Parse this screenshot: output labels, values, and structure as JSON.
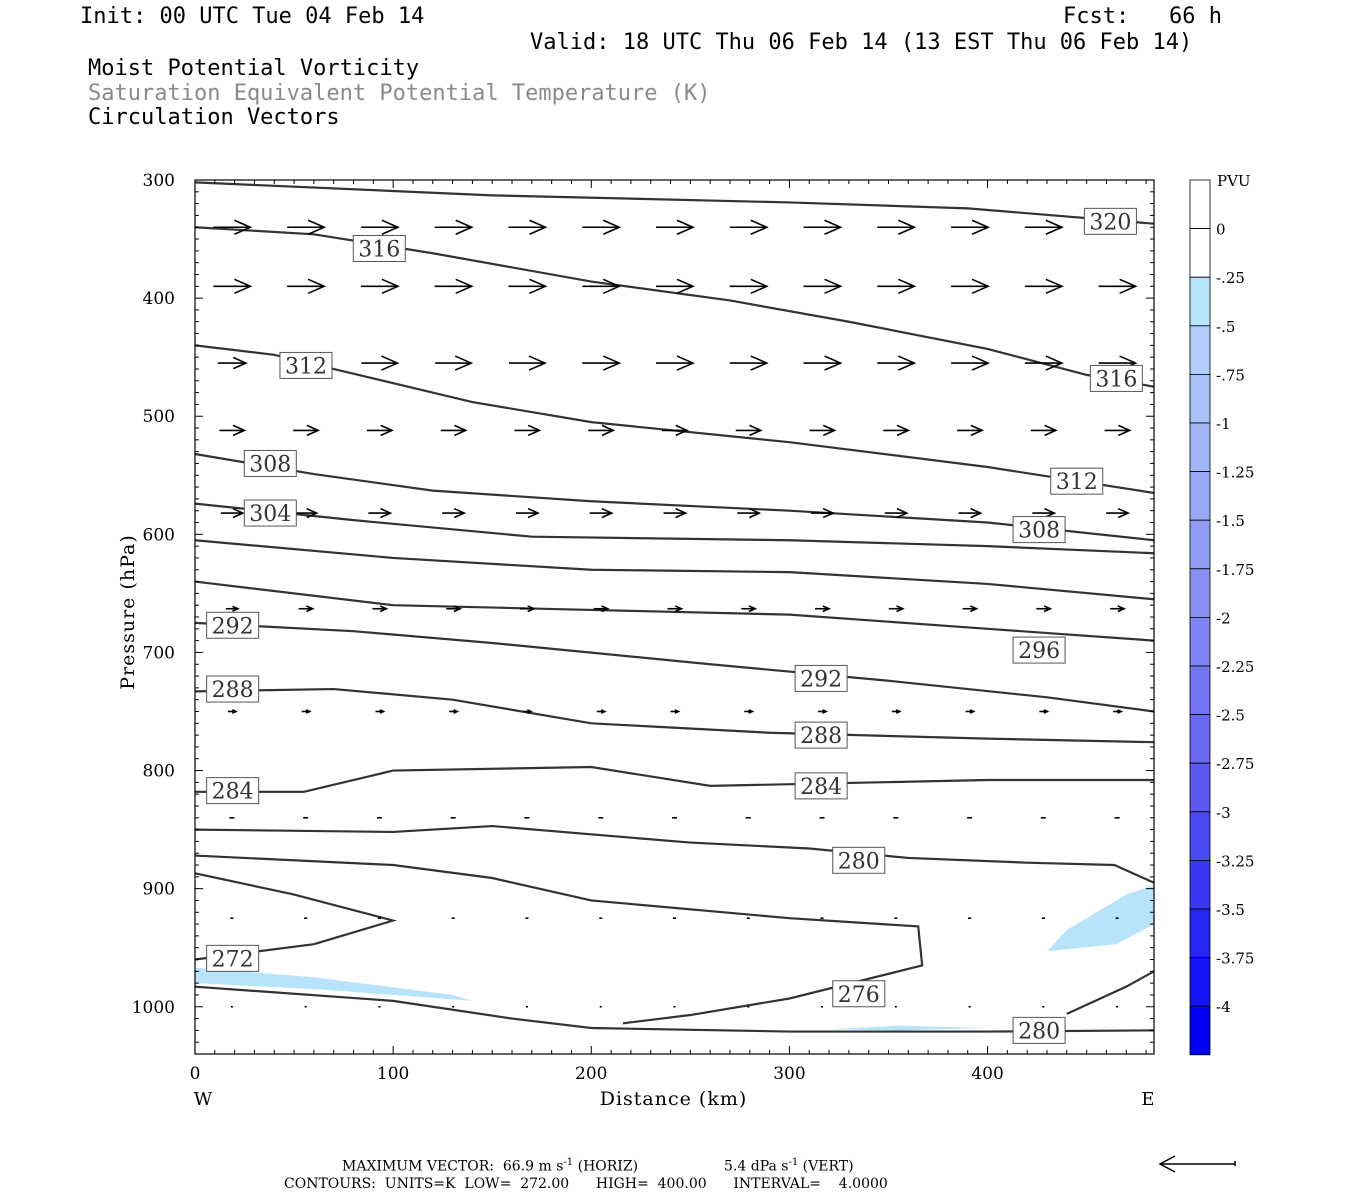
{
  "header": {
    "init": "Init: 00 UTC Tue 04 Feb 14",
    "fcst": "Fcst:   66 h",
    "valid": "Valid: 18 UTC Thu 06 Feb 14 (13 EST Thu 06 Feb 14)",
    "title1": "Moist Potential Vorticity",
    "title2": "Saturation Equivalent Potential Temperature (K)",
    "title3": "Circulation Vectors"
  },
  "colors": {
    "contour": "#333333",
    "vector": "#000000",
    "neg_shading": "#b8e4fb"
  },
  "chart_data": {
    "type": "cross-section",
    "xlabel": "Distance (km)",
    "ylabel": "Pressure (hPa)",
    "xlim": [
      0,
      484
    ],
    "ylim": [
      300,
      1040
    ],
    "x_ticks": [
      0,
      100,
      200,
      300,
      400
    ],
    "y_ticks": [
      300,
      400,
      500,
      600,
      700,
      800,
      900,
      1000
    ],
    "x_end_labels": {
      "left": "W",
      "right": "E"
    },
    "colorbar": {
      "title": "PVU",
      "labels": [
        "0",
        "-.25",
        "-.5",
        "-.75",
        "-1",
        "-1.25",
        "-1.5",
        "-1.75",
        "-2",
        "-2.25",
        "-2.5",
        "-2.75",
        "-3",
        "-3.25",
        "-3.5",
        "-3.75",
        "-4"
      ],
      "colors": [
        "#ffffff",
        "#ffffff",
        "#b8e4fb",
        "#b0cdfa",
        "#a8c1f9",
        "#a0b4f7",
        "#98a8f6",
        "#909cf5",
        "#8890f4",
        "#7f82f3",
        "#7474f2",
        "#6868f2",
        "#5a5af2",
        "#4a4af3",
        "#3838f4",
        "#2626f6",
        "#1414f8",
        "#0000fb"
      ]
    },
    "contour_labels": [
      {
        "text": "320",
        "x": 462,
        "p": 335
      },
      {
        "text": "316",
        "x": 93,
        "p": 358
      },
      {
        "text": "316",
        "x": 465,
        "p": 468
      },
      {
        "text": "312",
        "x": 56,
        "p": 457
      },
      {
        "text": "312",
        "x": 445,
        "p": 555
      },
      {
        "text": "308",
        "x": 38,
        "p": 540
      },
      {
        "text": "308",
        "x": 426,
        "p": 596
      },
      {
        "text": "304",
        "x": 38,
        "p": 582
      },
      {
        "text": "296",
        "x": 426,
        "p": 698
      },
      {
        "text": "292",
        "x": 19,
        "p": 677
      },
      {
        "text": "292",
        "x": 316,
        "p": 722
      },
      {
        "text": "288",
        "x": 19,
        "p": 731
      },
      {
        "text": "288",
        "x": 316,
        "p": 770
      },
      {
        "text": "284",
        "x": 19,
        "p": 817
      },
      {
        "text": "284",
        "x": 316,
        "p": 813
      },
      {
        "text": "280",
        "x": 335,
        "p": 876
      },
      {
        "text": "276",
        "x": 335,
        "p": 989
      },
      {
        "text": "272",
        "x": 19,
        "p": 959
      },
      {
        "text": "280",
        "x": 426,
        "p": 1020
      }
    ],
    "contours": [
      {
        "level": 320,
        "points": [
          [
            0,
            302
          ],
          [
            150,
            313
          ],
          [
            300,
            319
          ],
          [
            390,
            324
          ],
          [
            484,
            337
          ]
        ]
      },
      {
        "level": 316,
        "points": [
          [
            0,
            340
          ],
          [
            60,
            346
          ],
          [
            120,
            362
          ],
          [
            200,
            386
          ],
          [
            270,
            402
          ],
          [
            330,
            420
          ],
          [
            400,
            443
          ],
          [
            450,
            465
          ],
          [
            484,
            475
          ]
        ]
      },
      {
        "level": 312,
        "points": [
          [
            0,
            440
          ],
          [
            40,
            448
          ],
          [
            90,
            468
          ],
          [
            140,
            488
          ],
          [
            200,
            505
          ],
          [
            300,
            522
          ],
          [
            400,
            543
          ],
          [
            484,
            565
          ]
        ]
      },
      {
        "level": 308,
        "points": [
          [
            0,
            532
          ],
          [
            60,
            549
          ],
          [
            120,
            563
          ],
          [
            200,
            572
          ],
          [
            300,
            580
          ],
          [
            400,
            590
          ],
          [
            484,
            605
          ]
        ]
      },
      {
        "level": 304,
        "points": [
          [
            0,
            574
          ],
          [
            80,
            588
          ],
          [
            170,
            602
          ],
          [
            300,
            605
          ],
          [
            400,
            610
          ],
          [
            484,
            616
          ]
        ]
      },
      {
        "level": 300,
        "points": [
          [
            0,
            605
          ],
          [
            100,
            620
          ],
          [
            200,
            630
          ],
          [
            300,
            632
          ],
          [
            400,
            642
          ],
          [
            484,
            655
          ]
        ]
      },
      {
        "level": 296,
        "points": [
          [
            0,
            640
          ],
          [
            100,
            660
          ],
          [
            200,
            664
          ],
          [
            300,
            668
          ],
          [
            400,
            680
          ],
          [
            484,
            690
          ]
        ]
      },
      {
        "level": 292,
        "points": [
          [
            0,
            675
          ],
          [
            80,
            682
          ],
          [
            150,
            692
          ],
          [
            260,
            710
          ],
          [
            350,
            724
          ],
          [
            430,
            738
          ],
          [
            484,
            750
          ]
        ]
      },
      {
        "level": 288,
        "points": [
          [
            0,
            733
          ],
          [
            70,
            731
          ],
          [
            130,
            740
          ],
          [
            200,
            760
          ],
          [
            290,
            768
          ],
          [
            400,
            773
          ],
          [
            484,
            776
          ]
        ]
      },
      {
        "level": 284,
        "points": [
          [
            0,
            818
          ],
          [
            55,
            818
          ],
          [
            100,
            800
          ],
          [
            200,
            797
          ],
          [
            260,
            813
          ],
          [
            400,
            808
          ],
          [
            484,
            808
          ]
        ]
      },
      {
        "level": 280,
        "points": [
          [
            0,
            850
          ],
          [
            100,
            852
          ],
          [
            150,
            847
          ],
          [
            250,
            861
          ],
          [
            310,
            866
          ],
          [
            360,
            874
          ],
          [
            420,
            878
          ],
          [
            464,
            880
          ],
          [
            484,
            895
          ]
        ]
      },
      {
        "level": 276,
        "points": [
          [
            0,
            872
          ],
          [
            100,
            880
          ],
          [
            150,
            891
          ],
          [
            200,
            910
          ],
          [
            300,
            925
          ],
          [
            365,
            932
          ],
          [
            367,
            965
          ],
          [
            300,
            993
          ],
          [
            250,
            1007
          ],
          [
            216,
            1014
          ]
        ]
      },
      {
        "level": 272,
        "points": [
          [
            0,
            887
          ],
          [
            50,
            905
          ],
          [
            100,
            927
          ],
          [
            60,
            947
          ],
          [
            0,
            960
          ]
        ]
      },
      {
        "level": 280,
        "points": [
          [
            0,
            983
          ],
          [
            100,
            995
          ],
          [
            160,
            1010
          ],
          [
            200,
            1018
          ],
          [
            300,
            1021
          ],
          [
            400,
            1021
          ],
          [
            484,
            1020
          ]
        ]
      },
      {
        "level": 284,
        "points": [
          [
            440,
            1006
          ],
          [
            470,
            983
          ],
          [
            484,
            970
          ]
        ]
      }
    ],
    "shading": [
      {
        "value": -0.5,
        "points": [
          [
            0,
            967
          ],
          [
            60,
            975
          ],
          [
            130,
            990
          ],
          [
            140,
            995
          ],
          [
            60,
            985
          ],
          [
            0,
            980
          ]
        ]
      },
      {
        "value": -0.5,
        "points": [
          [
            430,
            953
          ],
          [
            440,
            935
          ],
          [
            470,
            905
          ],
          [
            484,
            897
          ],
          [
            484,
            930
          ],
          [
            465,
            947
          ]
        ]
      },
      {
        "value": -0.5,
        "points": [
          [
            320,
            1019
          ],
          [
            355,
            1016
          ],
          [
            400,
            1018
          ],
          [
            355,
            1020
          ]
        ]
      }
    ],
    "vector_rows": [
      {
        "p": 340,
        "lengths": [
          37,
          37,
          37,
          37,
          37,
          37,
          37,
          37,
          37,
          37,
          37,
          37,
          37
        ]
      },
      {
        "p": 390,
        "lengths": [
          37,
          37,
          37,
          37,
          37,
          37,
          37,
          37,
          37,
          37,
          37,
          37,
          37
        ]
      },
      {
        "p": 455,
        "lengths": [
          28,
          35,
          36,
          36,
          36,
          37,
          37,
          37,
          37,
          37,
          37,
          37,
          37
        ]
      },
      {
        "p": 512,
        "lengths": [
          25,
          25,
          25,
          25,
          25,
          25,
          25,
          25,
          25,
          25,
          25,
          25,
          25
        ]
      },
      {
        "p": 582,
        "lengths": [
          22,
          22,
          22,
          22,
          22,
          22,
          22,
          22,
          22,
          22,
          22,
          22,
          22
        ]
      },
      {
        "p": 663,
        "lengths": [
          12,
          14,
          14,
          14,
          14,
          14,
          14,
          14,
          14,
          14,
          14,
          14,
          14
        ]
      },
      {
        "p": 750,
        "lengths": [
          8,
          8,
          8,
          8,
          8,
          8,
          8,
          8,
          8,
          8,
          8,
          8,
          8
        ]
      },
      {
        "p": 840,
        "lengths": [
          5,
          5,
          5,
          5,
          5,
          5,
          5,
          5,
          5,
          5,
          5,
          5,
          5
        ]
      },
      {
        "p": 925,
        "lengths": [
          3,
          3,
          3,
          3,
          3,
          3,
          3,
          3,
          3,
          3,
          3,
          3,
          3
        ]
      },
      {
        "p": 1000,
        "lengths": [
          2,
          2,
          2,
          2,
          2,
          2,
          2,
          2,
          2,
          2,
          2,
          2,
          2
        ]
      }
    ]
  },
  "footer": {
    "line1_a": "MAXIMUM VECTOR:  66.9 m s",
    "line1_a_exp": "-1",
    "line1_b": " (HORIZ)",
    "line1_c": "5.4 dPa s",
    "line1_c_exp": "-1",
    "line1_d": " (VERT)",
    "line2": "CONTOURS:  UNITS=K  LOW=  272.00      HIGH=  400.00      INTERVAL=    4.0000"
  }
}
